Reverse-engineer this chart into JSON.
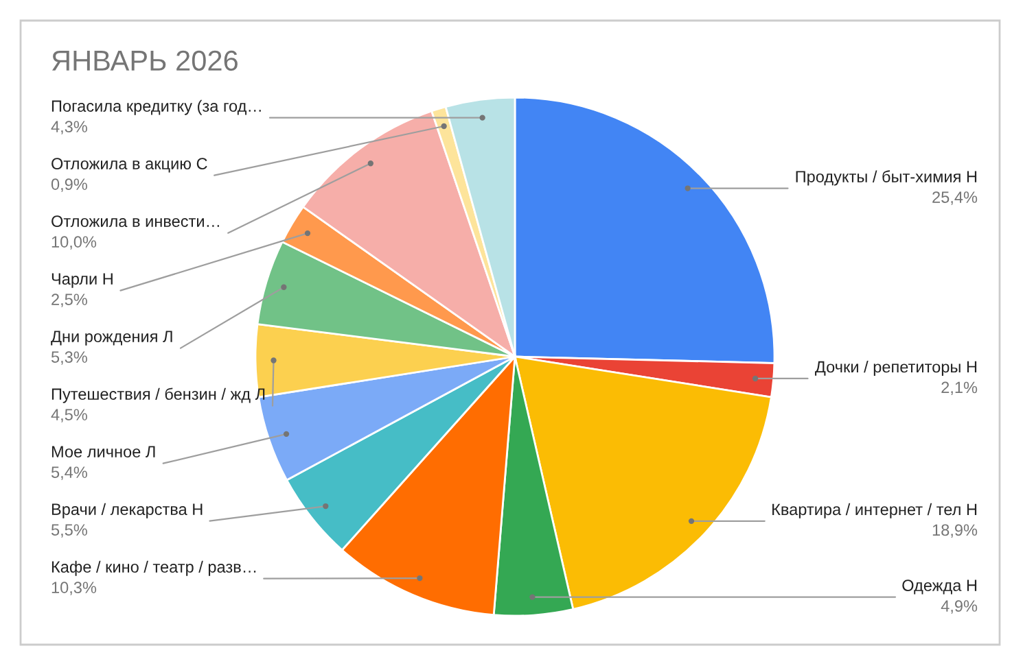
{
  "chart_data": {
    "type": "pie",
    "title": "ЯНВАРЬ 2026",
    "categories": [
      "Продукты / быт-химия Н",
      "Дочки / репетиторы Н",
      "Квартира / интернет / тел Н",
      "Одежда Н",
      "Кафе / кино / театр / разв…",
      "Врачи / лекарства Н",
      "Мое личное Л",
      "Путешествия / бензин / жд Л",
      "Дни рождения Л",
      "Чарли Н",
      "Отложила в инвести…",
      "Отложила в акцию С",
      "Погасила кредитку (за год…"
    ],
    "values": [
      25.4,
      2.1,
      18.9,
      4.9,
      10.3,
      5.5,
      5.4,
      4.5,
      5.3,
      2.5,
      10.0,
      0.9,
      4.3
    ],
    "value_labels": [
      "25,4%",
      "2,1%",
      "18,9%",
      "4,9%",
      "10,3%",
      "5,5%",
      "5,4%",
      "4,5%",
      "5,3%",
      "2,5%",
      "10,0%",
      "0,9%",
      "4,3%"
    ],
    "colors": [
      "#4285f4",
      "#ea4335",
      "#fbbc04",
      "#34a853",
      "#ff6d01",
      "#46bdc6",
      "#7baaf7",
      "#fcd04f",
      "#71c287",
      "#ff994d",
      "#f6aea9",
      "#fde49b",
      "#b8e2e6"
    ]
  }
}
